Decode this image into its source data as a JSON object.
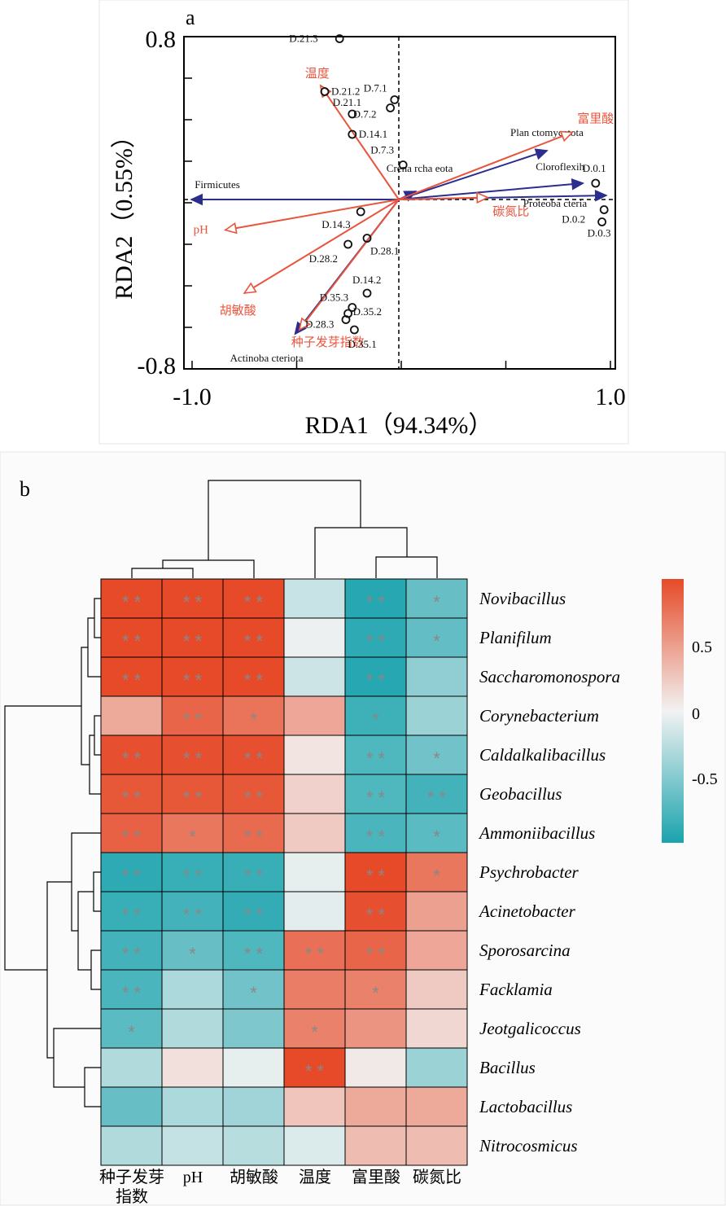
{
  "panel_a": {
    "label": "a"
  },
  "panel_b": {
    "label": "b"
  },
  "colors": {
    "env_arrow": "#e8553d",
    "taxa_arrow": "#2b2d8f",
    "heat_high": "#e64a28",
    "heat_mid": "#f2f2f2",
    "heat_low": "#1aa3ad",
    "star": "#8a8a8a"
  },
  "chart_data": [
    {
      "type": "scatter",
      "title": "",
      "xlabel": "RDA1（94.34%）",
      "ylabel": "RDA2（0.55%）",
      "xlim": [
        -1.0,
        1.0
      ],
      "ylim": [
        -0.8,
        0.8
      ],
      "x_ticks": [
        {
          "value": -1.0,
          "label": "-1.0"
        },
        {
          "value": 1.0,
          "label": "1.0"
        }
      ],
      "y_ticks": [
        {
          "value": 0.8,
          "label": "0.8"
        },
        {
          "value": -0.8,
          "label": "-0.8"
        }
      ],
      "sites": [
        {
          "name": "D.21.3",
          "x": -0.28,
          "y": 0.79
        },
        {
          "name": "D.21.2",
          "x": -0.35,
          "y": 0.53
        },
        {
          "name": "D.21.1",
          "x": -0.22,
          "y": 0.42
        },
        {
          "name": "D.7.1",
          "x": -0.02,
          "y": 0.49
        },
        {
          "name": "D.7.2",
          "x": -0.04,
          "y": 0.45
        },
        {
          "name": "D.14.1",
          "x": -0.22,
          "y": 0.32
        },
        {
          "name": "D.7.3",
          "x": 0.02,
          "y": 0.17
        },
        {
          "name": "D.0.1",
          "x": 0.93,
          "y": 0.08
        },
        {
          "name": "D.0.2",
          "x": 0.97,
          "y": -0.05
        },
        {
          "name": "D.0.3",
          "x": 0.96,
          "y": -0.11
        },
        {
          "name": "D.14.3",
          "x": -0.18,
          "y": -0.06
        },
        {
          "name": "D.28.1",
          "x": -0.15,
          "y": -0.19
        },
        {
          "name": "D.28.2",
          "x": -0.24,
          "y": -0.22
        },
        {
          "name": "D.14.2",
          "x": -0.15,
          "y": -0.46
        },
        {
          "name": "D.35.3",
          "x": -0.22,
          "y": -0.53
        },
        {
          "name": "D.35.2",
          "x": -0.24,
          "y": -0.56
        },
        {
          "name": "D.28.3",
          "x": -0.25,
          "y": -0.59
        },
        {
          "name": "D.35.1",
          "x": -0.21,
          "y": -0.64
        }
      ],
      "env_vectors": [
        {
          "name": "温度",
          "x": -0.37,
          "y": 0.56
        },
        {
          "name": "富里酸",
          "x": 0.82,
          "y": 0.33
        },
        {
          "name": "碳氮比",
          "x": 0.42,
          "y": 0.01
        },
        {
          "name": "pH",
          "x": -0.82,
          "y": -0.15
        },
        {
          "name": "胡敏酸",
          "x": -0.73,
          "y": -0.46
        },
        {
          "name": "种子发芽指数",
          "x": -0.47,
          "y": -0.64
        }
      ],
      "taxa_vectors": [
        {
          "name": "Firmicutes",
          "x": -0.98,
          "y": 0.0
        },
        {
          "name": "Plan ctomycetota",
          "x": 0.7,
          "y": 0.24
        },
        {
          "name": "Cloroflexih",
          "x": 0.87,
          "y": 0.08
        },
        {
          "name": "Proteoba cteria",
          "x": 0.98,
          "y": 0.02
        },
        {
          "name": "Crena rcha eota",
          "x": 0.08,
          "y": 0.04
        },
        {
          "name": "Actinoba cteriota",
          "x": -0.49,
          "y": -0.66
        }
      ]
    },
    {
      "type": "heatmap",
      "title": "",
      "columns": [
        "种子发芽指数",
        "pH",
        "胡敏酸",
        "温度",
        "富里酸",
        "碳氮比"
      ],
      "column_labels": [
        [
          "种子发芽",
          "指数"
        ],
        [
          "pH"
        ],
        [
          "胡敏酸"
        ],
        [
          "温度"
        ],
        [
          "富里酸"
        ],
        [
          "碳氮比"
        ]
      ],
      "rows": [
        "Novibacillus",
        "Planifilum",
        "Saccharomonospora",
        "Corynebacterium",
        "Caldalkalibacillus",
        "Geobacillus",
        "Ammoniibacillus",
        "Psychrobacter",
        "Acinetobacter",
        "Sporosarcina",
        "Facklamia",
        "Jeotgalicoccus",
        "Bacillus",
        "Lactobacillus",
        "Nitrocosmicus"
      ],
      "values": [
        [
          0.93,
          0.93,
          0.93,
          -0.18,
          -0.88,
          -0.6
        ],
        [
          0.93,
          0.93,
          0.93,
          -0.02,
          -0.85,
          -0.62
        ],
        [
          0.93,
          0.93,
          0.93,
          -0.16,
          -0.88,
          -0.42
        ],
        [
          0.4,
          0.78,
          0.7,
          0.42,
          -0.78,
          -0.38
        ],
        [
          0.9,
          0.9,
          0.9,
          0.08,
          -0.7,
          -0.55
        ],
        [
          0.85,
          0.85,
          0.85,
          0.18,
          -0.7,
          -0.75
        ],
        [
          0.8,
          0.68,
          0.75,
          0.22,
          -0.72,
          -0.65
        ],
        [
          -0.85,
          -0.8,
          -0.8,
          -0.05,
          0.93,
          0.68
        ],
        [
          -0.8,
          -0.75,
          -0.82,
          -0.06,
          0.9,
          0.45
        ],
        [
          -0.75,
          -0.6,
          -0.7,
          0.72,
          0.78,
          0.42
        ],
        [
          -0.72,
          -0.3,
          -0.55,
          0.65,
          0.62,
          0.22
        ],
        [
          -0.65,
          -0.28,
          -0.5,
          0.62,
          0.52,
          0.15
        ],
        [
          -0.28,
          0.1,
          -0.05,
          0.93,
          0.05,
          -0.38
        ],
        [
          -0.6,
          -0.3,
          -0.35,
          0.25,
          0.4,
          0.4
        ],
        [
          -0.28,
          -0.2,
          -0.25,
          -0.1,
          0.3,
          0.3
        ]
      ],
      "significance": [
        [
          "**",
          "**",
          "**",
          "",
          "**",
          "*"
        ],
        [
          "**",
          "**",
          "**",
          "",
          "**",
          "*"
        ],
        [
          "**",
          "**",
          "**",
          "",
          "**",
          ""
        ],
        [
          "",
          "**",
          "*",
          "",
          "*",
          ""
        ],
        [
          "**",
          "**",
          "**",
          "",
          "**",
          "*"
        ],
        [
          "**",
          "**",
          "**",
          "",
          "**",
          "**"
        ],
        [
          "**",
          "*",
          "**",
          "",
          "**",
          "*"
        ],
        [
          "**",
          "**",
          "**",
          "",
          "**",
          "*"
        ],
        [
          "**",
          "**",
          "**",
          "",
          "**",
          ""
        ],
        [
          "**",
          "*",
          "**",
          "**",
          "**",
          ""
        ],
        [
          "**",
          "",
          "*",
          "",
          "*",
          ""
        ],
        [
          "*",
          "",
          "",
          "*",
          "",
          ""
        ],
        [
          "",
          "",
          "",
          "**",
          "",
          ""
        ],
        [
          "",
          "",
          "",
          "",
          "",
          ""
        ],
        [
          "",
          "",
          "",
          "",
          "",
          ""
        ]
      ],
      "color_scale": {
        "min": -0.93,
        "max": 0.93,
        "ticks": [
          {
            "value": 0.5,
            "label": "0.5"
          },
          {
            "value": 0,
            "label": "0"
          },
          {
            "value": -0.5,
            "label": "-0.5"
          }
        ]
      },
      "col_dendrogram": "((((种子发芽指数, pH), 胡敏酸), (温度, (富里酸, 碳氮比))))",
      "row_dendrogram": "two clusters: rows 1-7 (positive with 种子发芽指数/pH/胡敏酸) and rows 8-15"
    }
  ]
}
